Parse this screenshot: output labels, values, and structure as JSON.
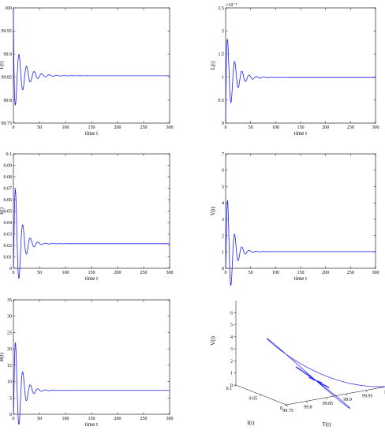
{
  "chart_data": [
    {
      "type": "line",
      "xlabel": "time t",
      "ylabel": "T(t)",
      "xlim": [
        0,
        300
      ],
      "ylim": [
        99.75,
        100
      ],
      "xticks": [
        "0",
        "50",
        "100",
        "150",
        "200",
        "250",
        "300"
      ],
      "yticks": [
        "99.75",
        "99.8",
        "99.85",
        "99.9",
        "99.95",
        "100"
      ],
      "curve": {
        "y0": 100,
        "eq": 99.853,
        "amp": -0.083,
        "period": 14.5,
        "decay": 18,
        "rise": 0.9
      },
      "color": "#1f1fff"
    },
    {
      "type": "line",
      "xlabel": "time t",
      "ylabel": "L(t)",
      "multiplier": "×10⁻⁴",
      "xlim": [
        0,
        300
      ],
      "ylim": [
        0,
        2.5
      ],
      "xticks": [
        "0",
        "50",
        "100",
        "150",
        "200",
        "250",
        "300"
      ],
      "yticks": [
        "0",
        "0.5",
        "1",
        "1.5",
        "2",
        "2.5"
      ],
      "curve": {
        "y0": 0,
        "eq": 0.99,
        "amp": 1.06,
        "period": 14.5,
        "decay": 16,
        "rise": 0.8
      },
      "color": "#1f1fff"
    },
    {
      "type": "line",
      "xlabel": "time t",
      "ylabel": "I(t)",
      "xlim": [
        0,
        300
      ],
      "ylim": [
        0,
        0.1
      ],
      "xticks": [
        "0",
        "50",
        "100",
        "150",
        "200",
        "250",
        "300"
      ],
      "yticks": [
        "0",
        "0.01",
        "0.02",
        "0.03",
        "0.04",
        "0.05",
        "0.06",
        "0.07",
        "0.08",
        "0.09",
        "0.1"
      ],
      "curve": {
        "y0": 0,
        "eq": 0.0215,
        "amp": 0.0735,
        "period": 14.5,
        "decay": 12,
        "rise": 1.5
      },
      "color": "#1f1fff"
    },
    {
      "type": "line",
      "xlabel": "time t",
      "ylabel": "V(t)",
      "xlim": [
        0,
        300
      ],
      "ylim": [
        0,
        7
      ],
      "xticks": [
        "0",
        "50",
        "100",
        "150",
        "200",
        "250",
        "300"
      ],
      "yticks": [
        "0",
        "1",
        "2",
        "3",
        "4",
        "5",
        "6",
        "7"
      ],
      "curve": {
        "y0": 0,
        "eq": 1.02,
        "amp": 5.45,
        "period": 14.5,
        "decay": 11,
        "rise": 2.0
      },
      "color": "#1f1fff"
    },
    {
      "type": "line",
      "xlabel": "time t",
      "ylabel": "R(t)",
      "xlim": [
        0,
        300
      ],
      "ylim": [
        0,
        35
      ],
      "xticks": [
        "0",
        "50",
        "100",
        "150",
        "200",
        "250",
        "300"
      ],
      "yticks": [
        "0",
        "5",
        "10",
        "15",
        "20",
        "25",
        "30",
        "35"
      ],
      "curve": {
        "y0": 0,
        "eq": 7.3,
        "amp": 25.3,
        "period": 14.5,
        "decay": 12,
        "rise": 2.0
      },
      "color": "#1f1fff"
    },
    {
      "type": "line3d",
      "xlabel": "T(t)",
      "ylabel": "I(t)",
      "zlabel": "V(t)",
      "xlim": [
        99.75,
        100
      ],
      "ylim": [
        0,
        0.1
      ],
      "zlim": [
        0,
        7
      ],
      "xticks": [
        "99.75",
        "99.8",
        "99.85",
        "99.9",
        "99.95",
        "100"
      ],
      "yticks": [
        "0",
        "0.05",
        "0.1"
      ],
      "zticks": [
        "0",
        "1",
        "2",
        "3",
        "4",
        "5",
        "6"
      ],
      "color": "#1f1fff"
    }
  ]
}
